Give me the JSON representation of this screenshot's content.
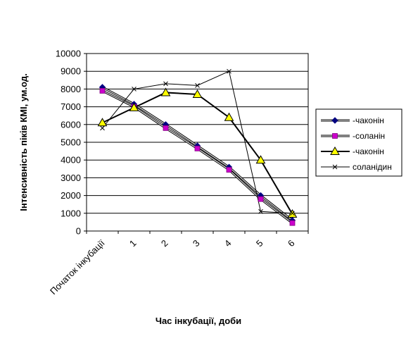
{
  "chart_data": {
    "type": "line",
    "title": "",
    "xlabel": "Час інкубації, доби",
    "ylabel": "Інтенсивність піків КМІ, ум.од.",
    "categories": [
      "Початок інкубації",
      "1",
      "2",
      "3",
      "4",
      "5",
      "6"
    ],
    "ylim": [
      0,
      10000
    ],
    "yticks": [
      0,
      1000,
      2000,
      3000,
      4000,
      5000,
      6000,
      7000,
      8000,
      9000,
      10000
    ],
    "grid": "horizontal",
    "legend_position": "right",
    "series": [
      {
        "name": "-чаконін",
        "values": [
          8100,
          7150,
          6000,
          4800,
          3600,
          2000,
          600
        ],
        "color": "#000080",
        "marker": "diamond",
        "line_color": "#000000"
      },
      {
        "name": "-соланін",
        "values": [
          7900,
          7000,
          5800,
          4650,
          3450,
          1800,
          450
        ],
        "color": "#cc00cc",
        "marker": "square",
        "line_color": "#000000"
      },
      {
        "name": "-чаконін",
        "values": [
          6100,
          6950,
          7800,
          7700,
          6400,
          4000,
          950
        ],
        "color": "#ffff00",
        "marker": "triangle",
        "line_color": "#000000"
      },
      {
        "name": "соланідин",
        "values": [
          5800,
          8000,
          8300,
          8200,
          9000,
          1100,
          1000
        ],
        "color": "#000000",
        "marker": "x",
        "line_color": "#000000"
      }
    ]
  }
}
